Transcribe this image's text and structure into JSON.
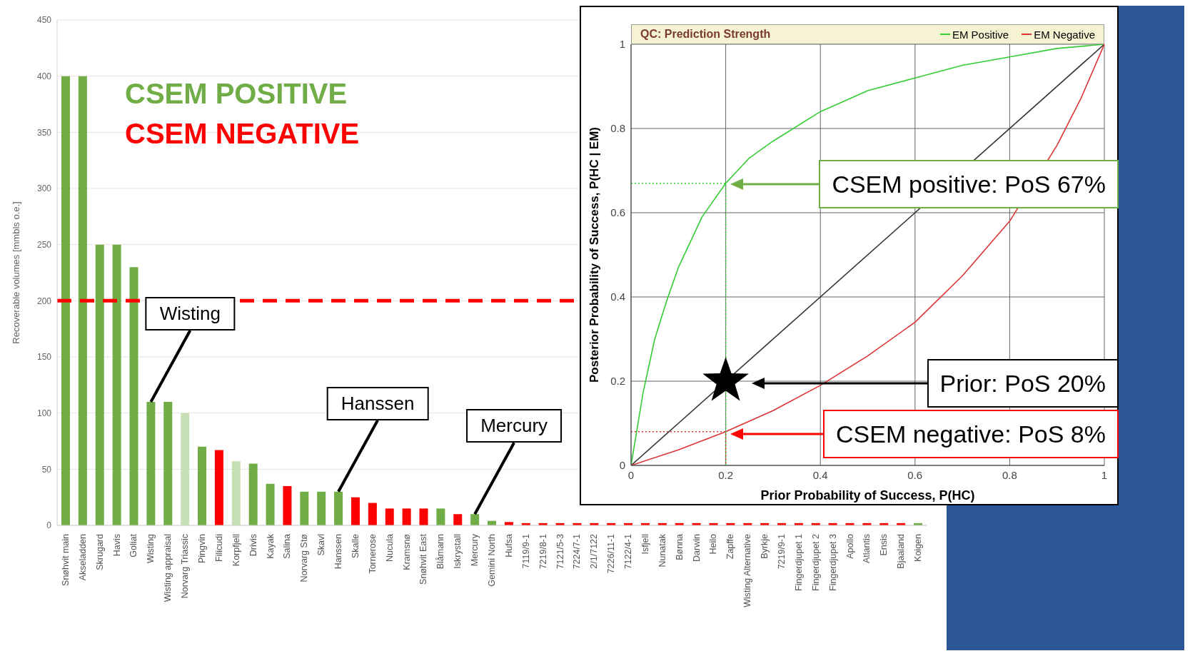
{
  "chart_data": [
    {
      "type": "bar",
      "ylabel": "Recoverable volumes [mmbls o.e.]",
      "stacked": true,
      "legend": "top left",
      "grid": "y",
      "categories": [
        "Snøhvit main",
        "Akseladden",
        "Skrugard",
        "Havis",
        "Goliat",
        "Wisting",
        "Wisting appraisal",
        "Norvarg Triassic",
        "Pingvin",
        "Filicudi",
        "Korpfjell",
        "Drivis",
        "Kayak",
        "Salina",
        "Norvarg Stø",
        "Skavl",
        "Hanssen",
        "Skalle",
        "Tornerose",
        "Nucula",
        "Kramsnø",
        "Snøhvit East",
        "Blåmann",
        "Iskrystall",
        "Mercury",
        "Gemini North",
        "Hufsa",
        "7119/9-1",
        "7219/8-1",
        "7121/5-3",
        "7224/7-1",
        "2/1/7122",
        "7226/11-1",
        "7122/4-1",
        "Isfjell",
        "Nunatak",
        "Bønna",
        "Darwin",
        "Heilo",
        "Zapffe",
        "Wisting Alternative",
        "Byrkje",
        "7219/9-1",
        "Fingerdjupet 1",
        "Fingerdjupet 2",
        "Fingerdjupet 3",
        "Apollo",
        "Atlantis",
        "Ensis",
        "Bjaaland",
        "Koigen"
      ],
      "series": [
        {
          "name": "CSEM POSITIVE",
          "color": "#70ad47",
          "values": [
            400,
            400,
            250,
            250,
            230,
            110,
            110,
            100,
            70,
            null,
            57,
            55,
            37,
            null,
            30,
            30,
            30,
            null,
            null,
            null,
            null,
            null,
            15,
            null,
            10,
            4,
            null,
            null,
            null,
            null,
            null,
            null,
            null,
            null,
            null,
            null,
            null,
            null,
            null,
            null,
            null,
            null,
            null,
            null,
            null,
            null,
            null,
            null,
            null,
            null,
            2
          ],
          "colors": [
            "#70ad47",
            "#70ad47",
            "#70ad47",
            "#70ad47",
            "#70ad47",
            "#70ad47",
            "#70ad47",
            "#c5e0b4",
            "#70ad47",
            null,
            "#c5e0b4",
            "#70ad47",
            "#70ad47",
            null,
            "#70ad47",
            "#70ad47",
            "#70ad47",
            null,
            null,
            null,
            null,
            null,
            "#70ad47",
            null,
            "#70ad47",
            "#70ad47",
            null,
            null,
            null,
            null,
            null,
            null,
            null,
            null,
            null,
            null,
            null,
            null,
            null,
            null,
            null,
            null,
            null,
            null,
            null,
            null,
            null,
            null,
            null,
            null,
            "#70ad47"
          ]
        },
        {
          "name": "CSEM NEGATIVE",
          "color": "#ff0000",
          "values": [
            null,
            null,
            null,
            null,
            null,
            null,
            null,
            null,
            null,
            67,
            null,
            null,
            null,
            35,
            null,
            null,
            null,
            25,
            20,
            15,
            15,
            15,
            null,
            10,
            null,
            null,
            3,
            2,
            2,
            2,
            2,
            2,
            2,
            2,
            2,
            2,
            2,
            2,
            2,
            2,
            2,
            2,
            2,
            2,
            2,
            2,
            2,
            2,
            2,
            2,
            null
          ]
        }
      ],
      "ylim": [
        0,
        450
      ],
      "yticks": [
        0,
        50,
        100,
        150,
        200,
        250,
        300,
        350,
        400,
        450
      ],
      "ref_lines": [
        {
          "axis": "y",
          "value": 200,
          "color": "#ff0000",
          "line_style": "dashed"
        }
      ],
      "annotations": [
        {
          "text": "Wisting",
          "x": "Wisting",
          "y": 110
        },
        {
          "text": "Hanssen",
          "x": "Hanssen",
          "y": 30
        },
        {
          "text": "Mercury",
          "x": "Mercury",
          "y": 10
        }
      ]
    },
    {
      "type": "line",
      "title": "QC: Prediction Strength",
      "xlabel": "Prior Probability of Success, P(HC)",
      "ylabel": "Posterior Probability of Success, P(HC | EM)",
      "legend": "top right",
      "grid": true,
      "xlim": [
        0,
        1
      ],
      "ylim": [
        0,
        1
      ],
      "xticks": [
        0,
        0.2,
        0.4,
        0.6,
        0.8,
        1
      ],
      "yticks": [
        0,
        0.2,
        0.4,
        0.6,
        0.8,
        1
      ],
      "series": [
        {
          "color": "#333333",
          "x": [
            0,
            1
          ],
          "values": [
            0,
            1
          ]
        },
        {
          "name": "EM Positive",
          "color": "#33cc33",
          "x": [
            0,
            0.025,
            0.05,
            0.075,
            0.1,
            0.15,
            0.2,
            0.25,
            0.3,
            0.4,
            0.5,
            0.6,
            0.7,
            0.8,
            0.9,
            1
          ],
          "values": [
            0,
            0.17,
            0.3,
            0.39,
            0.47,
            0.59,
            0.67,
            0.73,
            0.77,
            0.84,
            0.89,
            0.92,
            0.95,
            0.97,
            0.99,
            1
          ]
        },
        {
          "name": "EM Negative",
          "color": "#dd3333",
          "x": [
            0,
            0.1,
            0.2,
            0.3,
            0.4,
            0.5,
            0.6,
            0.7,
            0.8,
            0.9,
            0.95,
            1
          ],
          "values": [
            0,
            0.037,
            0.08,
            0.13,
            0.19,
            0.26,
            0.34,
            0.45,
            0.58,
            0.76,
            0.87,
            1
          ]
        },
        {
          "color": "#33cc33",
          "line_style": "dotted",
          "x": [
            0,
            0.2,
            0.2
          ],
          "values": [
            0.67,
            0.67,
            0
          ]
        },
        {
          "color": "#dd3333",
          "line_style": "dotted",
          "x": [
            0,
            0.2,
            0.2
          ],
          "values": [
            0.08,
            0.08,
            0
          ]
        },
        {
          "type": "scatter",
          "marker": "star",
          "color": "#000000",
          "x": [
            0.2
          ],
          "values": [
            0.2
          ]
        }
      ],
      "annotations": [
        "CSEM positive: PoS 67%",
        "Prior: PoS 20%",
        "CSEM negative: PoS 8%"
      ]
    }
  ]
}
